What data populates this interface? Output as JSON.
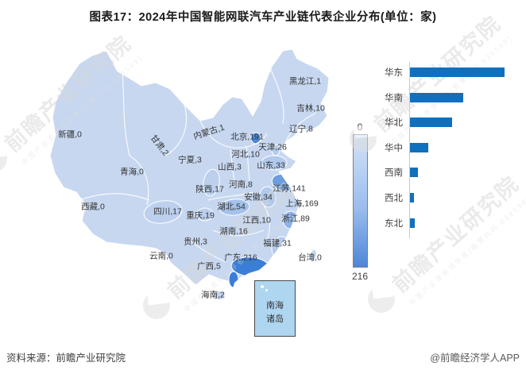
{
  "title": "图表17：2024年中国智能网联汽车产业链代表企业分布(单位：家)",
  "legend": {
    "min": "0",
    "max": "216"
  },
  "map": {
    "inset": {
      "line1": "南海",
      "line2": "诸岛"
    }
  },
  "chart_data": [
    {
      "type": "heatmap",
      "subtype": "choropleth-map-of-china",
      "title": "各省份智能网联汽车产业链代表企业数量(家)",
      "colorscale": {
        "min": 0,
        "max": 216,
        "min_label": "0",
        "max_label": "216"
      },
      "regions": [
        {
          "name": "新疆",
          "value": 0,
          "label": "新疆,0"
        },
        {
          "name": "甘肃",
          "value": 2,
          "label": "甘肃,2"
        },
        {
          "name": "青海",
          "value": 0,
          "label": "青海,0"
        },
        {
          "name": "西藏",
          "value": 0,
          "label": "西藏,0"
        },
        {
          "name": "宁夏",
          "value": 3,
          "label": "宁夏,3"
        },
        {
          "name": "内蒙古",
          "value": 1,
          "label": "内蒙古,1"
        },
        {
          "name": "黑龙江",
          "value": 1,
          "label": "黑龙江,1"
        },
        {
          "name": "吉林",
          "value": 10,
          "label": "吉林,10"
        },
        {
          "name": "辽宁",
          "value": 8,
          "label": "辽宁,8"
        },
        {
          "name": "北京",
          "value": 191,
          "label": "北京,191"
        },
        {
          "name": "天津",
          "value": 26,
          "label": "天津,26"
        },
        {
          "name": "河北",
          "value": 10,
          "label": "河北,10"
        },
        {
          "name": "山西",
          "value": 3,
          "label": "山西,3"
        },
        {
          "name": "山东",
          "value": 33,
          "label": "山东,33"
        },
        {
          "name": "陕西",
          "value": 17,
          "label": "陕西,17"
        },
        {
          "name": "河南",
          "value": 8,
          "label": "河南,8"
        },
        {
          "name": "安徽",
          "value": 34,
          "label": "安徽,34"
        },
        {
          "name": "江苏",
          "value": 141,
          "label": "江苏,141"
        },
        {
          "name": "上海",
          "value": 169,
          "label": "上海,169"
        },
        {
          "name": "浙江",
          "value": 89,
          "label": "浙江,89"
        },
        {
          "name": "湖北",
          "value": 54,
          "label": "湖北,54"
        },
        {
          "name": "重庆",
          "value": 19,
          "label": "重庆,19"
        },
        {
          "name": "江西",
          "value": 10,
          "label": "江西,10"
        },
        {
          "name": "湖南",
          "value": 16,
          "label": "湖南,16"
        },
        {
          "name": "四川",
          "value": 17,
          "label": "四川,17"
        },
        {
          "name": "贵州",
          "value": 3,
          "label": "贵州,3"
        },
        {
          "name": "福建",
          "value": 31,
          "label": "福建,31"
        },
        {
          "name": "云南",
          "value": 0,
          "label": "云南,0"
        },
        {
          "name": "广东",
          "value": 216,
          "label": "广东,216"
        },
        {
          "name": "广西",
          "value": 5,
          "label": "广西,5"
        },
        {
          "name": "台湾",
          "value": 0,
          "label": "台湾,0"
        },
        {
          "name": "海南",
          "value": 2,
          "label": "海南,2"
        }
      ]
    },
    {
      "type": "bar",
      "orientation": "horizontal",
      "categories": [
        "华东",
        "华南",
        "华北",
        "华中",
        "西南",
        "西北",
        "东北"
      ],
      "values": [
        507,
        283,
        224,
        97,
        42,
        23,
        25
      ],
      "values_are_estimated_from_bar_lengths": true,
      "value_labels_shown": false,
      "xlim": [
        0,
        540
      ],
      "grid": false,
      "legend_position": "none"
    }
  ],
  "colors": {
    "bar": "#1170bd",
    "map_base": "#c7d7f0",
    "map_max": "#3a7ed7",
    "inset_fill": "#aed6f1"
  },
  "watermark": {
    "brand": "前瞻产业研究院",
    "tagline": "中国产业咨询领导者(股票代码:839599)"
  },
  "footer": {
    "source": "资料来源：前瞻产业研究院",
    "credit": "@前瞻经济学人APP"
  }
}
